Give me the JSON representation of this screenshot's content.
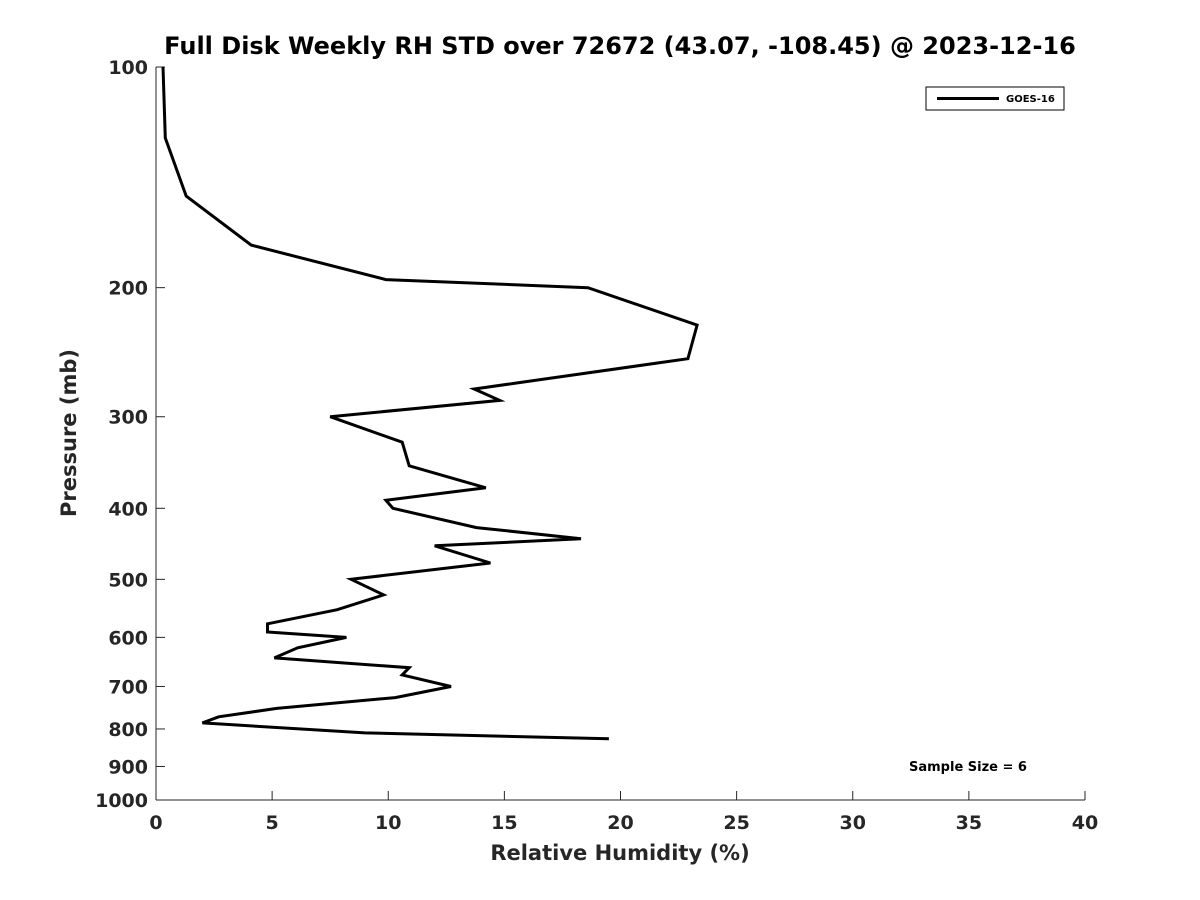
{
  "chart_data": {
    "type": "line",
    "title": "Full Disk Weekly RH STD over 72672 (43.07, -108.45) @ 2023-12-16",
    "xlabel": "Relative Humidity (%)",
    "ylabel": "Pressure (mb)",
    "xlim": [
      0,
      40
    ],
    "ylim": [
      100,
      1000
    ],
    "y_scale": "log",
    "y_reversed": true,
    "x_ticks": [
      "0",
      "5",
      "10",
      "15",
      "20",
      "25",
      "30",
      "35",
      "40"
    ],
    "y_ticks": [
      "100",
      "200",
      "300",
      "400",
      "500",
      "600",
      "700",
      "800",
      "900",
      "1000"
    ],
    "grid": false,
    "legend_position": "top-right",
    "series": [
      {
        "name": "GOES-16",
        "color": "#000000",
        "points": [
          [
            0.3,
            100
          ],
          [
            0.4,
            125
          ],
          [
            1.3,
            150
          ],
          [
            4.1,
            175
          ],
          [
            9.9,
            195
          ],
          [
            18.6,
            200
          ],
          [
            23.3,
            225
          ],
          [
            22.9,
            250
          ],
          [
            13.7,
            275
          ],
          [
            14.8,
            285
          ],
          [
            7.5,
            300
          ],
          [
            10.6,
            325
          ],
          [
            10.9,
            350
          ],
          [
            14.2,
            375
          ],
          [
            9.9,
            390
          ],
          [
            10.2,
            400
          ],
          [
            13.8,
            425
          ],
          [
            18.3,
            440
          ],
          [
            12.0,
            450
          ],
          [
            14.4,
            475
          ],
          [
            8.4,
            500
          ],
          [
            9.8,
            525
          ],
          [
            7.8,
            550
          ],
          [
            4.8,
            575
          ],
          [
            4.8,
            590
          ],
          [
            8.2,
            600
          ],
          [
            6.1,
            620
          ],
          [
            5.1,
            640
          ],
          [
            10.9,
            660
          ],
          [
            10.6,
            675
          ],
          [
            12.7,
            700
          ],
          [
            10.3,
            725
          ],
          [
            5.2,
            750
          ],
          [
            2.7,
            770
          ],
          [
            2.0,
            785
          ],
          [
            9.0,
            810
          ],
          [
            19.5,
            825
          ]
        ]
      }
    ],
    "annotation": "Sample Size = 6"
  }
}
